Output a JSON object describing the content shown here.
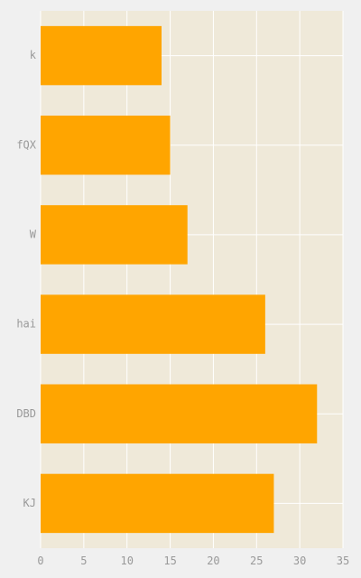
{
  "colors": {
    "background": "#f0f0f0",
    "plot_background": "#efe9d9",
    "grid": "#ffffff",
    "bar": "#ffa500",
    "tick_text": "#999999"
  },
  "chart_data": {
    "type": "bar",
    "orientation": "horizontal",
    "categories": [
      "k",
      "fQX",
      "W",
      "hai",
      "DBD",
      "KJ"
    ],
    "values": [
      14,
      15,
      17,
      26,
      32,
      27
    ],
    "xlim": [
      0,
      35
    ],
    "x_ticks": [
      0,
      5,
      10,
      15,
      20,
      25,
      30,
      35
    ],
    "grid": true,
    "legend": "none",
    "title": "",
    "xlabel": "",
    "ylabel": ""
  }
}
